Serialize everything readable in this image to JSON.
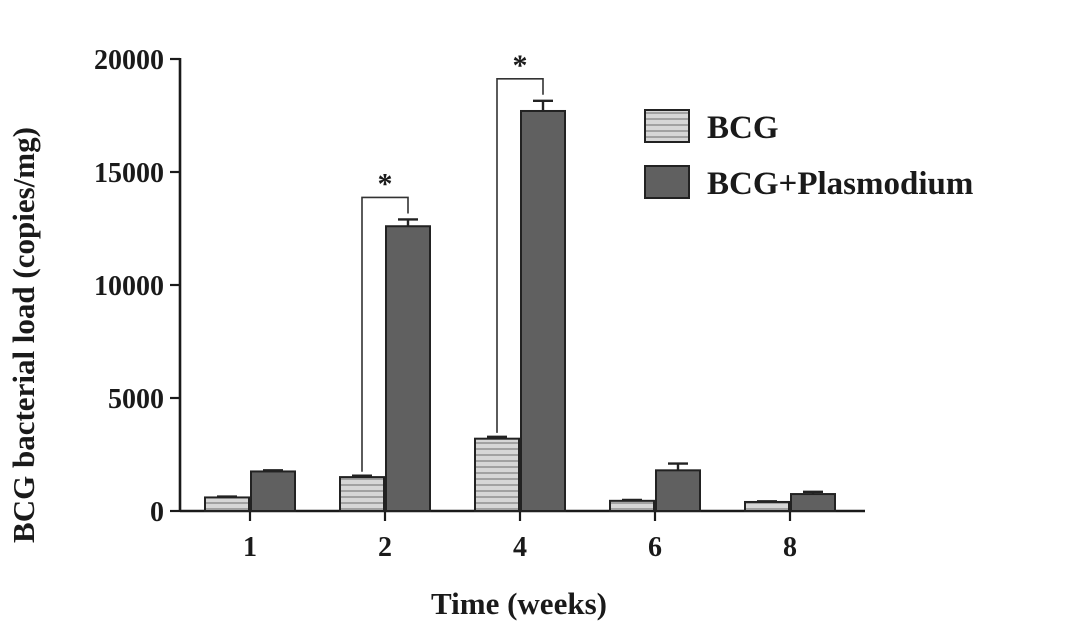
{
  "chart_data": {
    "type": "bar",
    "categories": [
      "1",
      "2",
      "4",
      "6",
      "8"
    ],
    "series": [
      {
        "name": "BCG",
        "values": [
          600,
          1500,
          3200,
          450,
          400
        ],
        "errors": [
          40,
          60,
          80,
          40,
          30
        ],
        "color": "#d0d0d0",
        "pattern": "horizontal-stripes"
      },
      {
        "name": "BCG+Plasmodium",
        "values": [
          1750,
          12600,
          17700,
          1800,
          750
        ],
        "errors": [
          50,
          300,
          450,
          300,
          100
        ],
        "color": "#606060",
        "pattern": "solid"
      }
    ],
    "xlabel": "Time (weeks)",
    "ylabel": "BCG bacterial load (copies/mg)",
    "ylim": [
      0,
      20000
    ],
    "yticks": [
      0,
      5000,
      10000,
      15000,
      20000
    ],
    "grid": false,
    "legend": "top-right",
    "annotations": [
      {
        "text": "*",
        "category": "2"
      },
      {
        "text": "*",
        "category": "4"
      }
    ]
  }
}
